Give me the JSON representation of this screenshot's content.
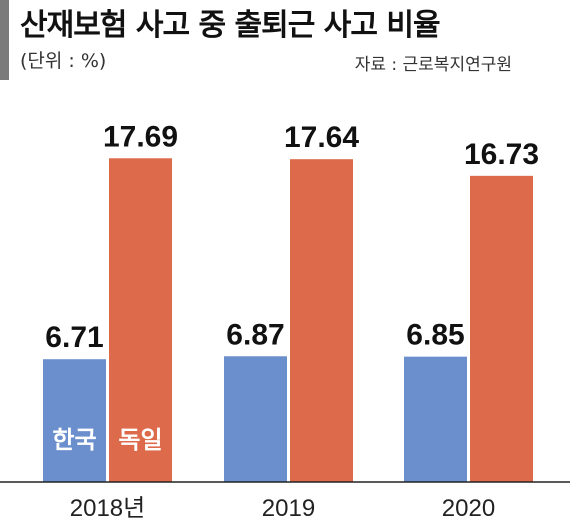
{
  "header": {
    "title": "산재보험 사고 중 출퇴근 사고 비율",
    "unit": "(단위 : %)",
    "source": "자료 : 근로복지연구원"
  },
  "chart_data": {
    "type": "bar",
    "categories": [
      "2018년",
      "2019",
      "2020"
    ],
    "series": [
      {
        "name": "한국",
        "values": [
          6.71,
          6.87,
          6.85
        ],
        "color": "#6b8fcc"
      },
      {
        "name": "독일",
        "values": [
          17.69,
          17.64,
          16.73
        ],
        "color": "#dd6a4a"
      }
    ],
    "ylim": [
      0,
      20
    ],
    "grid": false,
    "legend_placement": "inside-bars-bottom-left"
  }
}
